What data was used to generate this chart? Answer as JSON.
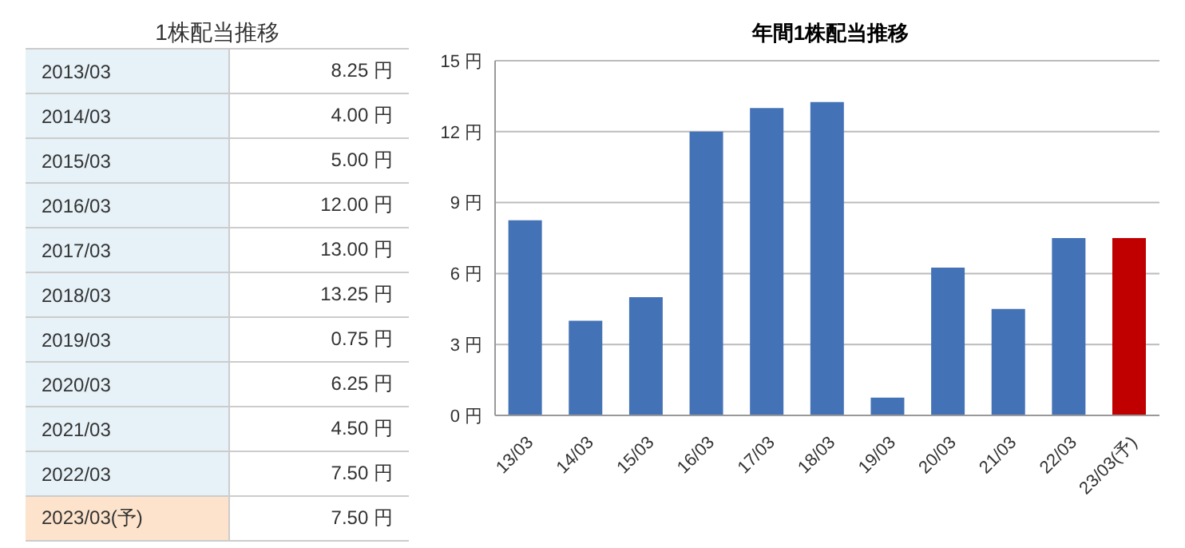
{
  "chart_data": [
    {
      "type": "other",
      "title": "1株配当推移",
      "annotations": [
        "2013/03",
        "8.25 円",
        "2014/03",
        "4.00 円",
        "2015/03",
        "5.00 円",
        "2016/03",
        "12.00 円",
        "2017/03",
        "13.00 円",
        "2018/03",
        "13.25 円",
        "2019/03",
        "0.75 円",
        "2020/03",
        "6.25 円",
        "2021/03",
        "4.50 円",
        "2022/03",
        "7.50 円",
        "2023/03(予)",
        "7.50 円"
      ]
    },
    {
      "type": "bar",
      "title": "年間1株配当推移",
      "categories": [
        "13/03",
        "14/03",
        "15/03",
        "16/03",
        "17/03",
        "18/03",
        "19/03",
        "20/03",
        "21/03",
        "22/03",
        "23/03(予)"
      ],
      "values": [
        8.25,
        4.0,
        5.0,
        12.0,
        13.0,
        13.25,
        0.75,
        6.25,
        4.5,
        7.5,
        7.5
      ],
      "colors": [
        "#4472b6",
        "#4472b6",
        "#4472b6",
        "#4472b6",
        "#4472b6",
        "#4472b6",
        "#4472b6",
        "#4472b6",
        "#4472b6",
        "#4472b6",
        "#c00000"
      ],
      "ylim": [
        0,
        15
      ],
      "yticks": [
        {
          "value": 0,
          "label": "0 円"
        },
        {
          "value": 3,
          "label": "3 円"
        },
        {
          "value": 6,
          "label": "6 円"
        },
        {
          "value": 9,
          "label": "9 円"
        },
        {
          "value": 12,
          "label": "12 円"
        },
        {
          "value": 15,
          "label": "15 円"
        }
      ],
      "grid": "y"
    }
  ]
}
